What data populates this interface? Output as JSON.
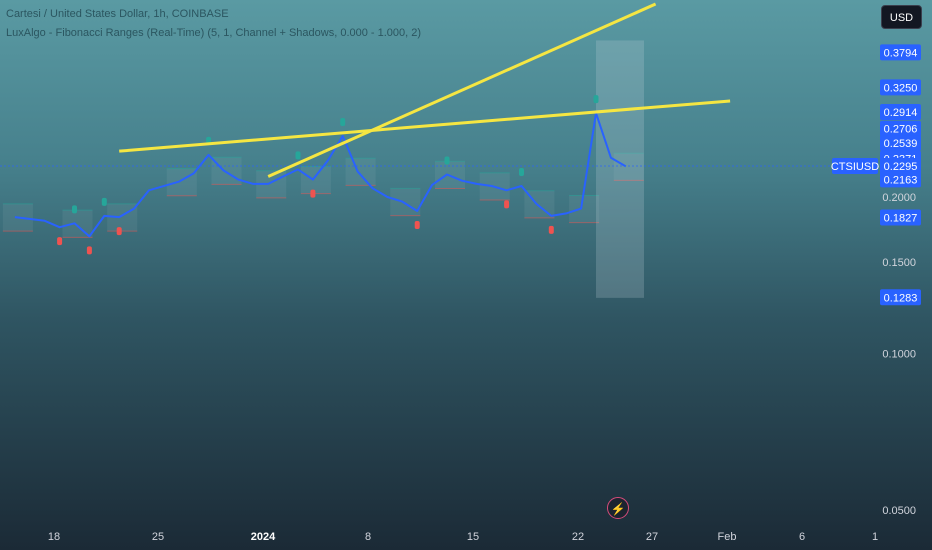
{
  "header": {
    "title": "Cartesi / United States Dollar, 1h, COINBASE",
    "indicator": "LuxAlgo - Fibonacci Ranges (Real-Time) (5, 1, Channel + Shadows, 0.000 - 1.000, 2)"
  },
  "currency_button": "USD",
  "alert_icon": "lightning-icon",
  "colors": {
    "price_line": "#2962ff",
    "trendline": "#f5e642",
    "price_tag": "#2962ff",
    "bull_marker": "#26a69a",
    "bear_marker": "#ef5350"
  },
  "chart_data": {
    "type": "line",
    "symbol": "CTSIUSD",
    "scale": "log",
    "ylim": [
      0.045,
      0.47
    ],
    "y_ticks": [
      "0.2000",
      "0.1500",
      "0.1000",
      "0.0500"
    ],
    "price_labels": [
      "0.3794",
      "0.3250",
      "0.2914",
      "0.2706",
      "0.2539",
      "0.2371",
      "0.2295",
      "0.2163",
      "0.1827",
      "0.1283"
    ],
    "x_labels": [
      "18",
      "25",
      "2024",
      "8",
      "15",
      "22",
      "27",
      "Feb",
      "6",
      "1"
    ],
    "last_price": 0.2295,
    "series": [
      {
        "x": [
          "Dec 14",
          "Dec 16",
          "Dec 17",
          "Dec 18",
          "Dec 19",
          "Dec 20",
          "Dec 21",
          "Dec 22",
          "Dec 23",
          "Dec 25",
          "Dec 26",
          "Dec 27",
          "Dec 28",
          "Dec 29",
          "Dec 30",
          "Dec 31",
          "Jan 1",
          "Jan 2",
          "Jan 3",
          "Jan 4",
          "Jan 5",
          "Jan 6",
          "Jan 7",
          "Jan 8",
          "Jan 9",
          "Jan 10",
          "Jan 11",
          "Jan 12",
          "Jan 13",
          "Jan 14",
          "Jan 15",
          "Jan 16",
          "Jan 17",
          "Jan 18",
          "Jan 19",
          "Jan 20",
          "Jan 21",
          "Jan 22",
          "Jan 23",
          "Jan 24"
        ],
        "y": [
          0.183,
          0.18,
          0.175,
          0.178,
          0.168,
          0.184,
          0.183,
          0.19,
          0.206,
          0.214,
          0.222,
          0.241,
          0.225,
          0.216,
          0.212,
          0.212,
          0.219,
          0.226,
          0.216,
          0.235,
          0.262,
          0.224,
          0.208,
          0.2,
          0.196,
          0.188,
          0.211,
          0.221,
          0.215,
          0.212,
          0.21,
          0.206,
          0.21,
          0.194,
          0.184,
          0.186,
          0.19,
          0.29,
          0.238,
          0.229
        ]
      }
    ],
    "trendlines": [
      {
        "x": [
          "Dec 21",
          "Jan 31"
        ],
        "y": [
          0.245,
          0.306
        ]
      },
      {
        "x": [
          "Dec 31",
          "Jan 26"
        ],
        "y": [
          0.219,
          0.47
        ]
      }
    ],
    "grid": false,
    "legend": "none"
  }
}
